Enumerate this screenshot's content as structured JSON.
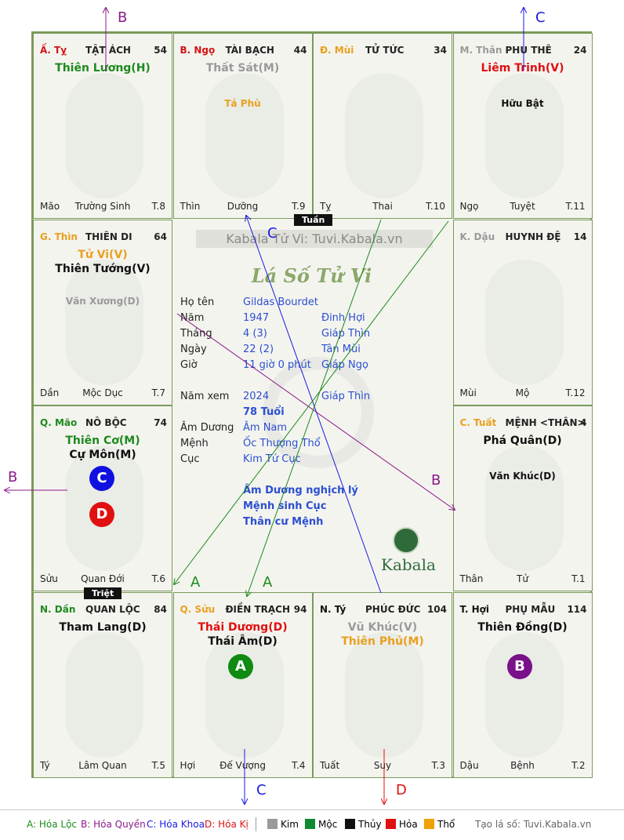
{
  "cells": [
    {
      "branch": "Ấ. Tỵ",
      "branch_color": "#d31515",
      "name": "TẬT ÁCH",
      "age": "54",
      "stars": [
        {
          "t": "Thiên Lương(H)",
          "c": "#1d8a1d",
          "big": true
        }
      ],
      "minors": [],
      "foot": [
        "Mão",
        "Trường Sinh",
        "T.8"
      ]
    },
    {
      "branch": "B. Ngọ",
      "branch_color": "#d31515",
      "name": "TÀI BẠCH",
      "age": "44",
      "stars": [
        {
          "t": "Thất Sát(M)",
          "c": "#9a9a9a",
          "big": true
        }
      ],
      "minors": [
        {
          "t": "Tả Phù",
          "c": "#e8a020"
        }
      ],
      "foot": [
        "Thìn",
        "Dưỡng",
        "T.9"
      ]
    },
    {
      "branch": "Đ. Mùi",
      "branch_color": "#e8a020",
      "name": "TỬ TỨC",
      "age": "34",
      "stars": [],
      "minors": [],
      "foot": [
        "Tỵ",
        "Thai",
        "T.10"
      ]
    },
    {
      "branch": "M. Thân",
      "branch_color": "#9a9a9a",
      "name": "PHU THÊ",
      "age": "24",
      "stars": [
        {
          "t": "Liêm Trinh(V)",
          "c": "#e01010",
          "big": true
        }
      ],
      "minors": [
        {
          "t": "Hữu Bật",
          "c": "#111"
        }
      ],
      "foot": [
        "Ngọ",
        "Tuyệt",
        "T.11"
      ]
    },
    {
      "branch": "G. Thìn",
      "branch_color": "#e8a020",
      "name": "THIÊN DI",
      "age": "64",
      "stars": [
        {
          "t": "Tử Vi(V)",
          "c": "#e8a020",
          "big": true
        },
        {
          "t": "Thiên Tướng(V)",
          "c": "#111",
          "big": true
        }
      ],
      "minors": [
        {
          "t": "Văn Xương(D)",
          "c": "#9a9a9a"
        }
      ],
      "foot": [
        "Dần",
        "Mộc Dục",
        "T.7"
      ]
    },
    {
      "branch": "K. Dậu",
      "branch_color": "#9a9a9a",
      "name": "HUYNH ĐỆ",
      "age": "14",
      "stars": [],
      "minors": [],
      "foot": [
        "Mùi",
        "Mộ",
        "T.12"
      ]
    },
    {
      "branch": "Q. Mão",
      "branch_color": "#1d8a1d",
      "name": "NÔ BỘC",
      "age": "74",
      "stars": [
        {
          "t": "Thiên Cơ(M)",
          "c": "#1d8a1d",
          "big": true
        },
        {
          "t": "Cự Môn(M)",
          "c": "#111",
          "big": true
        }
      ],
      "minors": [],
      "foot": [
        "Sửu",
        "Quan Đới",
        "T.6"
      ]
    },
    {
      "branch": "C. Tuất",
      "branch_color": "#e8a020",
      "name": "MỆNH <THÂN>",
      "age": "4",
      "stars": [
        {
          "t": "Phá Quân(D)",
          "c": "#111",
          "big": true
        }
      ],
      "minors": [
        {
          "t": "Văn Khúc(D)",
          "c": "#111"
        }
      ],
      "foot": [
        "Thân",
        "Tử",
        "T.1"
      ]
    },
    {
      "branch": "N. Dần",
      "branch_color": "#1d8a1d",
      "name": "QUAN LỘC",
      "age": "84",
      "stars": [
        {
          "t": "Tham Lang(D)",
          "c": "#111",
          "big": true
        }
      ],
      "minors": [],
      "foot": [
        "Tý",
        "Lâm Quan",
        "T.5"
      ]
    },
    {
      "branch": "Q. Sửu",
      "branch_color": "#e8a020",
      "name": "ĐIỀN TRẠCH",
      "age": "94",
      "stars": [
        {
          "t": "Thái Dương(D)",
          "c": "#e01010",
          "big": true
        },
        {
          "t": "Thái Âm(D)",
          "c": "#111",
          "big": true
        }
      ],
      "minors": [],
      "foot": [
        "Hợi",
        "Đế Vượng",
        "T.4"
      ]
    },
    {
      "branch": "N. Tý",
      "branch_color": "#111",
      "name": "PHÚC ĐỨC",
      "age": "104",
      "stars": [
        {
          "t": "Vũ Khúc(V)",
          "c": "#9a9a9a",
          "big": true
        },
        {
          "t": "Thiên Phủ(M)",
          "c": "#e8a020",
          "big": true
        }
      ],
      "minors": [],
      "foot": [
        "Tuất",
        "Suy",
        "T.3"
      ]
    },
    {
      "branch": "T. Hợi",
      "branch_color": "#111",
      "name": "PHỤ MẪU",
      "age": "114",
      "stars": [
        {
          "t": "Thiên Đồng(D)",
          "c": "#111",
          "big": true
        }
      ],
      "minors": [],
      "foot": [
        "Dậu",
        "Bệnh",
        "T.2"
      ]
    }
  ],
  "circles": [
    {
      "label": "C",
      "color": "#1010e0"
    },
    {
      "label": "D",
      "color": "#e01010"
    },
    {
      "label": "A",
      "color": "#108a10"
    },
    {
      "label": "B",
      "color": "#7a108a"
    }
  ],
  "center": {
    "watermark": "Kabala Tử Vi: Tuvi.Kabala.vn",
    "script_title": "Lá Số Tử Vi",
    "rows": [
      {
        "k": "Họ tên",
        "v": "Gildas Bourdet",
        "w": ""
      },
      {
        "k": "Năm",
        "v": "1947",
        "w": "Đinh Hợi"
      },
      {
        "k": "Tháng",
        "v": "4  (3)",
        "w": "Giáp Thìn"
      },
      {
        "k": "Ngày",
        "v": "22  (2)",
        "w": "Tân Mùi"
      },
      {
        "k": "Giờ",
        "v": "11 giờ 0 phút",
        "w": "Giáp Ngọ"
      },
      {
        "k": "Năm xem",
        "v": "2024",
        "w": "Giáp Thìn"
      },
      {
        "k": "",
        "v": "78 Tuổi",
        "w": ""
      },
      {
        "k": "Âm Dương",
        "v": "Âm Nam",
        "w": ""
      },
      {
        "k": "Mệnh",
        "v": "Ốc Thượng Thổ",
        "w": ""
      },
      {
        "k": "Cục",
        "v": "Kim Tứ Cục",
        "w": ""
      }
    ],
    "notes": [
      "Âm Dương nghịch lý",
      "Mệnh sinh Cục",
      "Thân cư Mệnh"
    ],
    "brand": "Kabala"
  },
  "tags": {
    "tuan": "Tuần",
    "triet": "Triệt"
  },
  "arrow_labels": {
    "b1": "B",
    "c1": "C",
    "c2": "C",
    "b2": "B",
    "b3": "B",
    "a1": "A",
    "a2": "A",
    "c3": "C",
    "d1": "D"
  },
  "legend": {
    "hoa_loc": "A: Hóa Lộc",
    "hoa_quyen": "B: Hóa Quyền",
    "hoa_khoa": "C: Hóa Khoa",
    "hoa_ki": "D: Hóa Kị",
    "elements": [
      {
        "n": "Kim",
        "c": "#9a9a9a"
      },
      {
        "n": "Mộc",
        "c": "#108a30"
      },
      {
        "n": "Thủy",
        "c": "#111111"
      },
      {
        "n": "Hỏa",
        "c": "#e01010"
      },
      {
        "n": "Thổ",
        "c": "#f0a000"
      }
    ],
    "site": "Tạo lá số: Tuvi.Kabala.vn"
  }
}
